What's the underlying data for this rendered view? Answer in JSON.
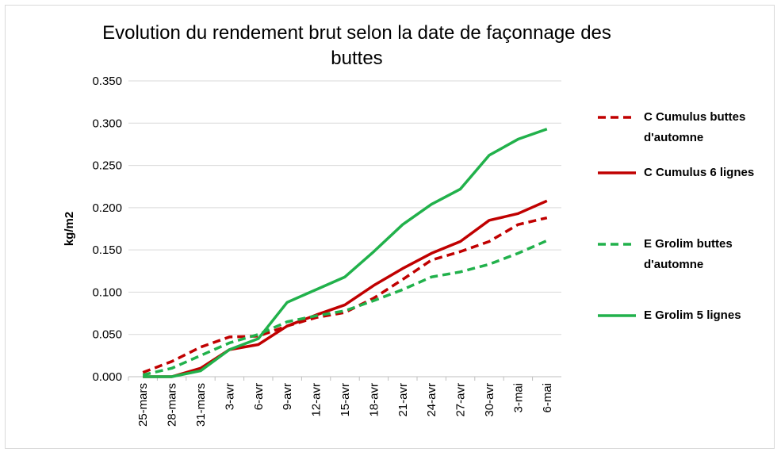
{
  "chart_data": {
    "type": "line",
    "title": "Evolution du rendement brut selon la date de façonnage des buttes",
    "y_label": "kg/m2",
    "categories": [
      "25-mars",
      "28-mars",
      "31-mars",
      "3-avr",
      "6-avr",
      "9-avr",
      "12-avr",
      "15-avr",
      "18-avr",
      "21-avr",
      "24-avr",
      "27-avr",
      "30-avr",
      "3-mai",
      "6-mai"
    ],
    "series": [
      {
        "name": "C Cumulus buttes d'automne",
        "color": "#c00000",
        "dashed": true,
        "values": [
          0.005,
          0.018,
          0.035,
          0.047,
          0.048,
          0.06,
          0.07,
          0.076,
          0.093,
          0.115,
          0.138,
          0.148,
          0.16,
          0.18,
          0.188
        ]
      },
      {
        "name": "C Cumulus 6 lignes",
        "color": "#c00000",
        "dashed": false,
        "values": [
          0,
          0,
          0.01,
          0.032,
          0.038,
          0.06,
          0.073,
          0.085,
          0.108,
          0.128,
          0.146,
          0.16,
          0.185,
          0.193,
          0.208
        ]
      },
      {
        "name": "E Grolim buttes d'automne",
        "color": "#21b14b",
        "dashed": true,
        "values": [
          0.002,
          0.01,
          0.025,
          0.04,
          0.05,
          0.065,
          0.072,
          0.078,
          0.09,
          0.103,
          0.118,
          0.124,
          0.133,
          0.146,
          0.161
        ]
      },
      {
        "name": "E Grolim 5 lignes",
        "color": "#21b14b",
        "dashed": false,
        "values": [
          0,
          0,
          0.007,
          0.032,
          0.045,
          0.088,
          0.103,
          0.118,
          0.148,
          0.18,
          0.204,
          0.222,
          0.262,
          0.281,
          0.293
        ]
      }
    ],
    "ylim": [
      0,
      0.35
    ],
    "yticks": [
      {
        "value": 0,
        "label": "0.000"
      },
      {
        "value": 0.05,
        "label": "0.050"
      },
      {
        "value": 0.1,
        "label": "0.100"
      },
      {
        "value": 0.15,
        "label": "0.150"
      },
      {
        "value": 0.2,
        "label": "0.200"
      },
      {
        "value": 0.25,
        "label": "0.250"
      },
      {
        "value": 0.3,
        "label": "0.300"
      },
      {
        "value": 0.35,
        "label": "0.350"
      }
    ],
    "grid": true,
    "legend": "right"
  }
}
